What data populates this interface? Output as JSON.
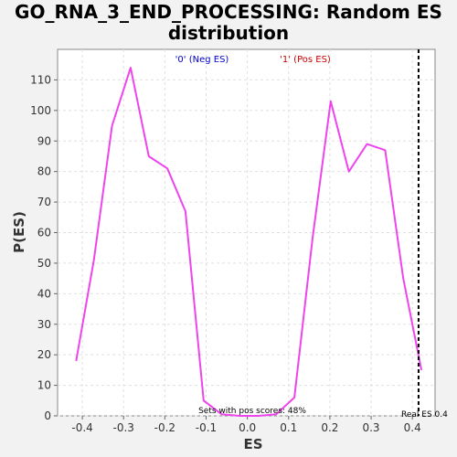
{
  "chart_data": {
    "type": "line",
    "title": "GO_RNA_3_END_PROCESSING: Random ES distribution",
    "xlabel": "ES",
    "ylabel": "P(ES)",
    "xlim": [
      -0.46,
      0.455
    ],
    "ylim": [
      0,
      120
    ],
    "xticks": [
      "-0.4",
      "-0.3",
      "-0.2",
      "-0.1",
      "0.0",
      "0.1",
      "0.2",
      "0.3",
      "0.4"
    ],
    "xtick_values": [
      -0.4,
      -0.3,
      -0.2,
      -0.1,
      0.0,
      0.1,
      0.2,
      0.3,
      0.4
    ],
    "yticks": [
      "0",
      "10",
      "20",
      "30",
      "40",
      "50",
      "60",
      "70",
      "80",
      "90",
      "100",
      "110"
    ],
    "ytick_values": [
      0,
      10,
      20,
      30,
      40,
      50,
      60,
      70,
      80,
      90,
      100,
      110
    ],
    "grid": true,
    "legend": {
      "placement": "top",
      "entries": [
        {
          "label": "'0' (Neg ES)",
          "color": "#0000cc"
        },
        {
          "label": "'1' (Pos ES)",
          "color": "#cc0000"
        }
      ]
    },
    "series": [
      {
        "color": "#ee44ee",
        "x": [
          -0.415,
          -0.372,
          -0.328,
          -0.283,
          -0.239,
          -0.194,
          -0.15,
          -0.106,
          -0.062,
          -0.018,
          0.026,
          0.07,
          0.114,
          0.158,
          0.202,
          0.246,
          0.29,
          0.334,
          0.378,
          0.422
        ],
        "y": [
          18,
          51,
          95,
          114,
          85,
          81,
          67,
          5,
          0.5,
          0,
          0,
          0.5,
          6,
          58,
          103,
          80,
          89,
          87,
          45,
          15
        ]
      }
    ],
    "reference_line": {
      "x": 0.415,
      "style": "dashed",
      "color": "#000000"
    },
    "annotations": [
      {
        "text": "Sets with pos scores: 48%"
      },
      {
        "text": "Real ES 0.4"
      }
    ]
  }
}
